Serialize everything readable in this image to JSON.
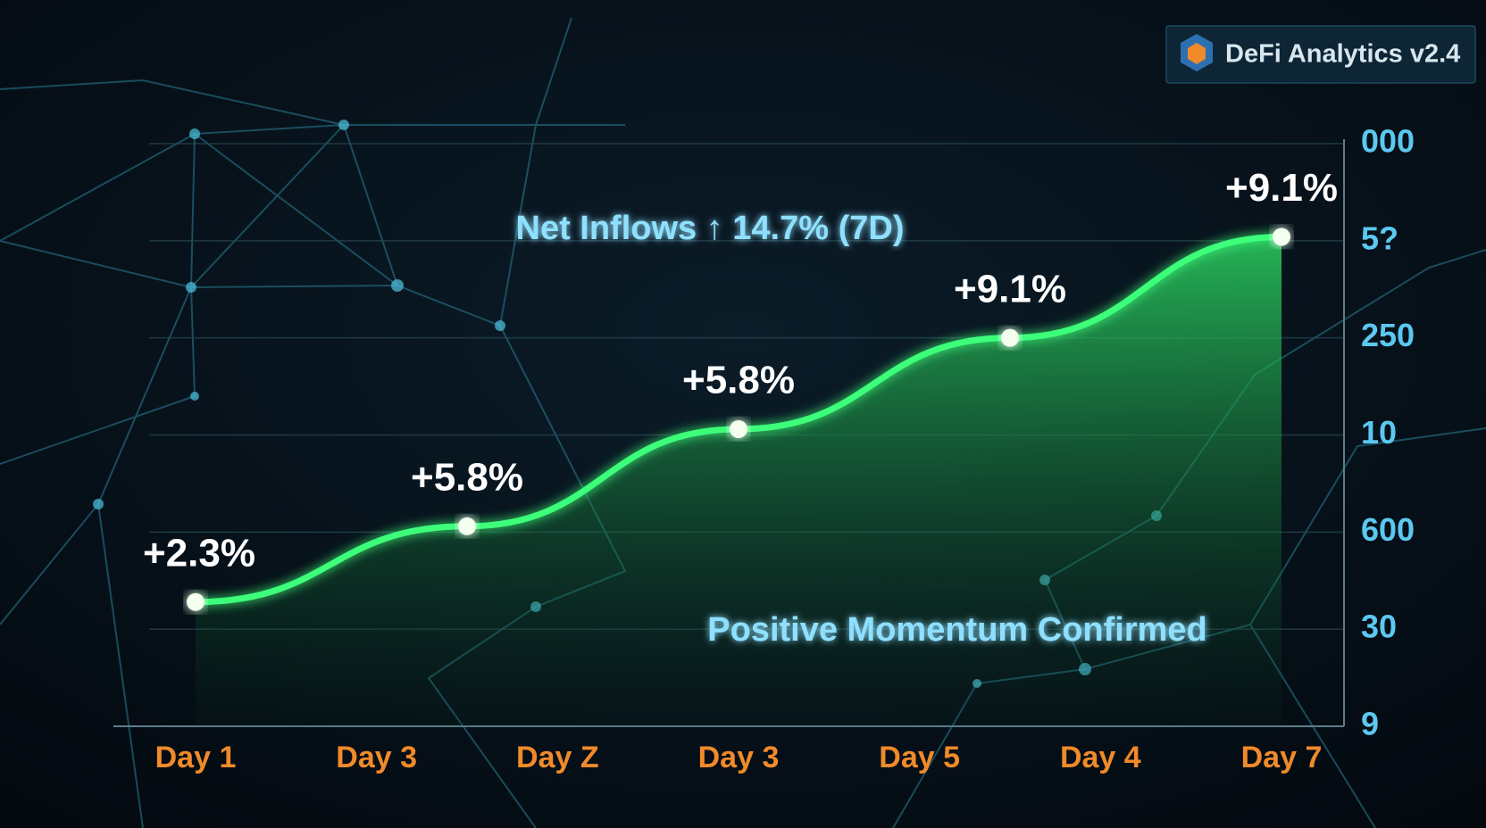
{
  "badge": "DeFi Analytics v2.4",
  "chart_data": {
    "type": "line",
    "annotations": [
      "Net Inflows ↑ 14.7% (7D)",
      "Positive Momentum Confirmed"
    ],
    "categories": [
      "Day 1",
      "Day 3",
      "Day Z",
      "Day 3",
      "Day 5",
      "Day 4",
      "Day 7"
    ],
    "x": [
      0,
      1.5,
      3,
      4.5,
      6
    ],
    "values": [
      1.28,
      2.06,
      3.06,
      4.0,
      5.04
    ],
    "point_labels": [
      "+2.3%",
      "+5.8%",
      "+5.8%",
      "+9.1%",
      "+9.1%"
    ],
    "color": "#3dff7a",
    "xlim": [
      0,
      6
    ],
    "ylim": [
      0,
      6
    ],
    "yticks": [
      {
        "value": 6,
        "label": "000"
      },
      {
        "value": 5,
        "label": "5?"
      },
      {
        "value": 4,
        "label": "250"
      },
      {
        "value": 3,
        "label": "10"
      },
      {
        "value": 2,
        "label": "600"
      },
      {
        "value": 1,
        "label": "30"
      },
      {
        "value": 0,
        "label": "9"
      }
    ],
    "grid": true
  }
}
